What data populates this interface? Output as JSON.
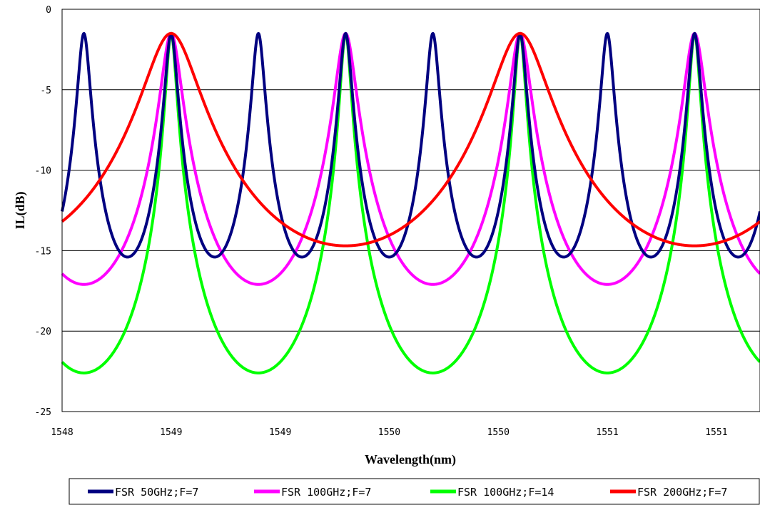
{
  "chart_data": {
    "type": "line",
    "title": "",
    "xlabel": "Wavelength(nm)",
    "ylabel": "IL(dB)",
    "xlim": [
      1548.0,
      1551.2
    ],
    "ylim": [
      -25,
      0
    ],
    "x_tick_values": [
      1548.0,
      1548.5,
      1549.0,
      1549.5,
      1550.0,
      1550.5,
      1551.0
    ],
    "x_tick_labels": [
      "1548",
      "1549",
      "1549",
      "1550",
      "1550",
      "1551",
      "1551"
    ],
    "y_tick_values": [
      0,
      -5,
      -10,
      -15,
      -20,
      -25
    ],
    "y_tick_labels": [
      "0",
      "-5",
      "-10",
      "-15",
      "-20",
      "-25"
    ],
    "grid": "horizontal",
    "legend_position": "bottom",
    "series": [
      {
        "name": "FSR 50GHz;F=7",
        "color": "#000080",
        "peak_il_db": -1.5,
        "min_il_db": -15.4,
        "peak_wavelengths_nm": [
          1548.1,
          1548.5,
          1548.9,
          1549.3,
          1549.7,
          1550.1,
          1550.5,
          1550.9
        ],
        "period_nm": 0.4
      },
      {
        "name": "FSR 100GHz;F=7",
        "color": "#ff00ff",
        "peak_il_db": -1.5,
        "min_il_db": -17.1,
        "peak_wavelengths_nm": [
          1548.5,
          1549.3,
          1550.1,
          1550.9
        ],
        "period_nm": 0.8
      },
      {
        "name": "FSR 100GHz;F=14",
        "color": "#00ff00",
        "peak_il_db": -1.5,
        "min_il_db": -22.6,
        "peak_wavelengths_nm": [
          1548.5,
          1549.3,
          1550.1,
          1550.9
        ],
        "period_nm": 0.8
      },
      {
        "name": "FSR 200GHz;F=7",
        "color": "#ff0000",
        "peak_il_db": -1.5,
        "min_il_db": -14.7,
        "peak_wavelengths_nm": [
          1548.5,
          1550.1
        ],
        "period_nm": 1.6
      }
    ]
  }
}
